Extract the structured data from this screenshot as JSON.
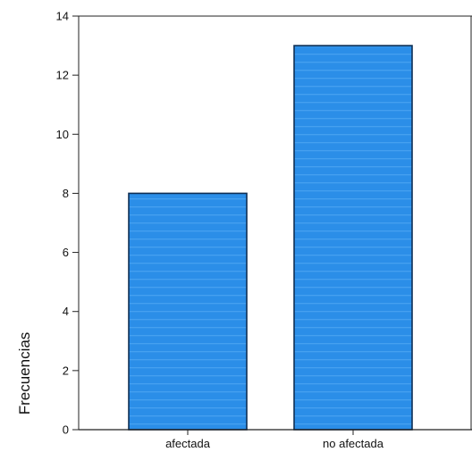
{
  "chart_data": {
    "type": "bar",
    "title": "",
    "xlabel": "",
    "ylabel": "Frecuencias",
    "categories": [
      "afectada",
      "no afectada"
    ],
    "values": [
      8,
      13
    ],
    "ylim": [
      0,
      14
    ],
    "yticks": [
      0,
      2,
      4,
      6,
      8,
      10,
      12,
      14
    ],
    "tick_labels": [
      "0",
      "2",
      "4",
      "6",
      "8",
      "10",
      "12",
      "14"
    ],
    "grid": false,
    "legend": "none",
    "colors": {
      "bar_fill": "#2b8ee8",
      "bar_stripe": "#5aaef5",
      "bar_edge": "#0e2f55",
      "axis": "#222222",
      "frame": "#222222"
    }
  }
}
